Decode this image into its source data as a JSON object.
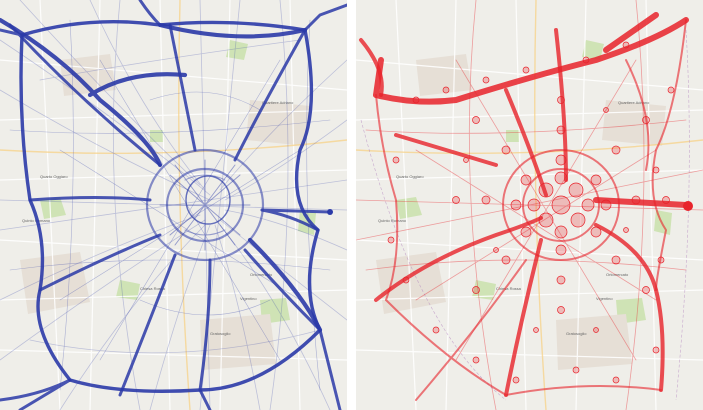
{
  "figure": {
    "panels": [
      {
        "id": "trajectory-map",
        "trace_color": "#2b3aa8",
        "base_labels": [
          "Quarto Oggiaro",
          "Quinto Romano",
          "Chiesa Rossa",
          "Gratosoglio",
          "Ortomercato",
          "Quartiere Adriano",
          "Vigentino"
        ]
      },
      {
        "id": "stop-point-map",
        "trace_color": "#e8232b",
        "base_labels": [
          "Quarto Oggiaro",
          "Quinto Romano",
          "Chiesa Rossa",
          "Gratosoglio",
          "Ortomercato",
          "Quartiere Adriano",
          "Vigentino"
        ]
      }
    ],
    "base_map_colors": {
      "land": "#efeee9",
      "park": "#cfe3b5",
      "residential": "#e6dfd6",
      "industrial": "#e9d8d8",
      "minor_road": "#ffffff",
      "major_road": "#f6d38d"
    }
  }
}
